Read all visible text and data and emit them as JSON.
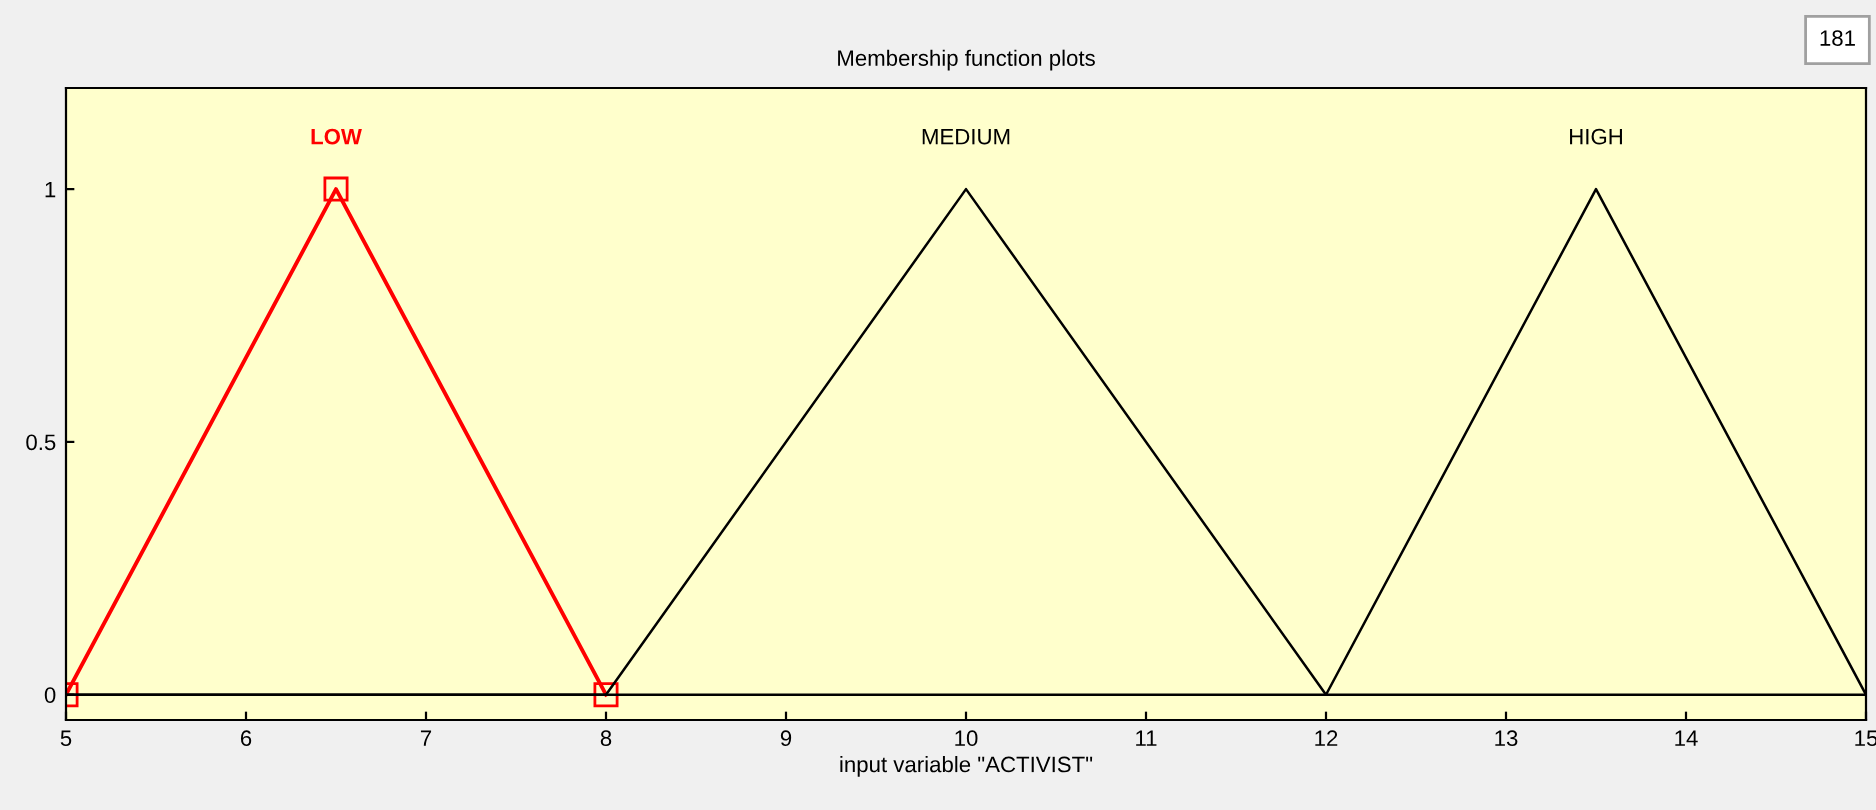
{
  "chart_data": {
    "type": "line",
    "title": "Membership function plots",
    "xlabel": "input variable \"ACTIVIST\"",
    "series": [
      {
        "name": "LOW",
        "color": "#ff0000",
        "x": [
          5,
          6.5,
          8
        ],
        "values": [
          0,
          1,
          0
        ],
        "marker": "square"
      },
      {
        "name": "MEDIUM",
        "color": "#000000",
        "x": [
          5,
          8,
          10,
          12,
          15
        ],
        "values": [
          0,
          0,
          1,
          0,
          0
        ],
        "marker": "none"
      },
      {
        "name": "HIGH",
        "color": "#000000",
        "x": [
          5,
          12,
          13.5,
          15
        ],
        "values": [
          0,
          0,
          1,
          0
        ],
        "marker": "none"
      }
    ],
    "xlim": [
      5,
      15
    ],
    "xticks": [
      5,
      6,
      7,
      8,
      9,
      10,
      11,
      12,
      13,
      14,
      15
    ],
    "ylim": [
      -0.05,
      1.2
    ],
    "yticks": [
      0,
      0.5,
      1
    ],
    "grid": false,
    "legend": false,
    "line_style": "solid",
    "annotations": [
      "181"
    ]
  }
}
